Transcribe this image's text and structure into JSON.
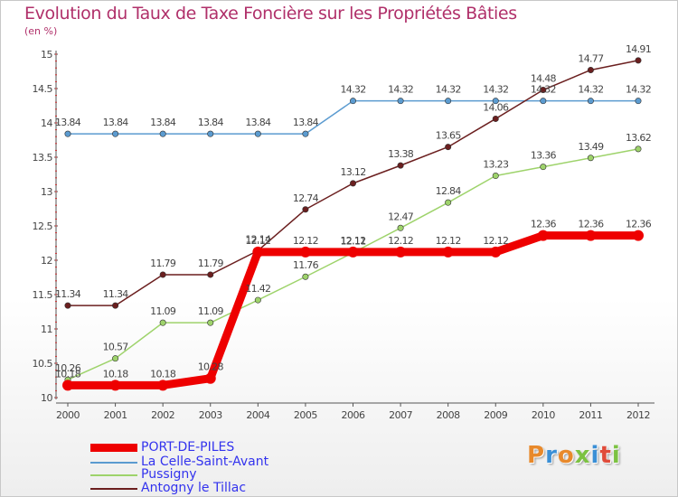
{
  "title": "Evolution du Taux de Taxe Foncière sur les Propriétés Bâties",
  "unit_label": "(en %)",
  "logo": {
    "text": "Proxiti",
    "colors": [
      "#e8892b",
      "#3a8fd6",
      "#e8892b",
      "#7cc242",
      "#3a8fd6",
      "#e04b3a",
      "#7cc242"
    ]
  },
  "chart_data": {
    "type": "line",
    "title": "Evolution du Taux de Taxe Foncière sur les Propriétés Bâties",
    "ylabel": "(en %)",
    "xlabel": "",
    "categories": [
      "2000",
      "2001",
      "2002",
      "2003",
      "2004",
      "2005",
      "2006",
      "2007",
      "2008",
      "2009",
      "2010",
      "2011",
      "2012"
    ],
    "ylim": [
      10,
      15
    ],
    "yticks": [
      "10",
      "10.5",
      "11",
      "11.5",
      "12",
      "12.5",
      "13",
      "13.5",
      "14",
      "14.5",
      "15"
    ],
    "grid": false,
    "legend_position": "bottom-left",
    "series": [
      {
        "name": "PORT-DE-PILES",
        "color": "#ee0000",
        "label_color": "#3333ee",
        "emphasis": true,
        "values": [
          10.18,
          10.18,
          10.18,
          10.28,
          12.12,
          12.12,
          12.12,
          12.12,
          12.12,
          12.12,
          12.36,
          12.36,
          12.36
        ],
        "labels": [
          "10.18",
          "10.18",
          "10.18",
          "10.28",
          "12.12",
          "12.12",
          "12.12",
          "12.12",
          "12.12",
          "12.12",
          "12.36",
          "12.36",
          "12.36"
        ]
      },
      {
        "name": "La Celle-Saint-Avant",
        "color": "#5b9bd0",
        "label_color": "#3333ee",
        "emphasis": false,
        "values": [
          13.84,
          13.84,
          13.84,
          13.84,
          13.84,
          13.84,
          14.32,
          14.32,
          14.32,
          14.32,
          14.32,
          14.32,
          14.32
        ],
        "labels": [
          "13.84",
          "13.84",
          "13.84",
          "13.84",
          "13.84",
          "13.84",
          "14.32",
          "14.32",
          "14.32",
          "14.32",
          "14.32",
          "14.32",
          "14.32"
        ]
      },
      {
        "name": "Pussigny",
        "color": "#9ed36b",
        "label_color": "#3333ee",
        "emphasis": false,
        "values": [
          10.26,
          10.57,
          11.09,
          11.09,
          11.42,
          11.76,
          12.11,
          12.47,
          12.84,
          13.23,
          13.36,
          13.49,
          13.62
        ],
        "labels": [
          "10.26",
          "10.57",
          "11.09",
          "11.09",
          "11.42",
          "11.76",
          "12.11",
          "12.47",
          "12.84",
          "13.23",
          "13.36",
          "13.49",
          "13.62"
        ]
      },
      {
        "name": "Antogny le Tillac",
        "color": "#6b1f1f",
        "label_color": "#3333ee",
        "emphasis": false,
        "values": [
          11.34,
          11.34,
          11.79,
          11.79,
          12.14,
          12.74,
          13.12,
          13.38,
          13.65,
          14.06,
          14.48,
          14.77,
          14.91
        ],
        "labels": [
          "11.34",
          "11.34",
          "11.79",
          "11.79",
          "12.14",
          "12.74",
          "13.12",
          "13.38",
          "13.65",
          "14.06",
          "14.48",
          "14.77",
          "14.91"
        ]
      }
    ]
  }
}
